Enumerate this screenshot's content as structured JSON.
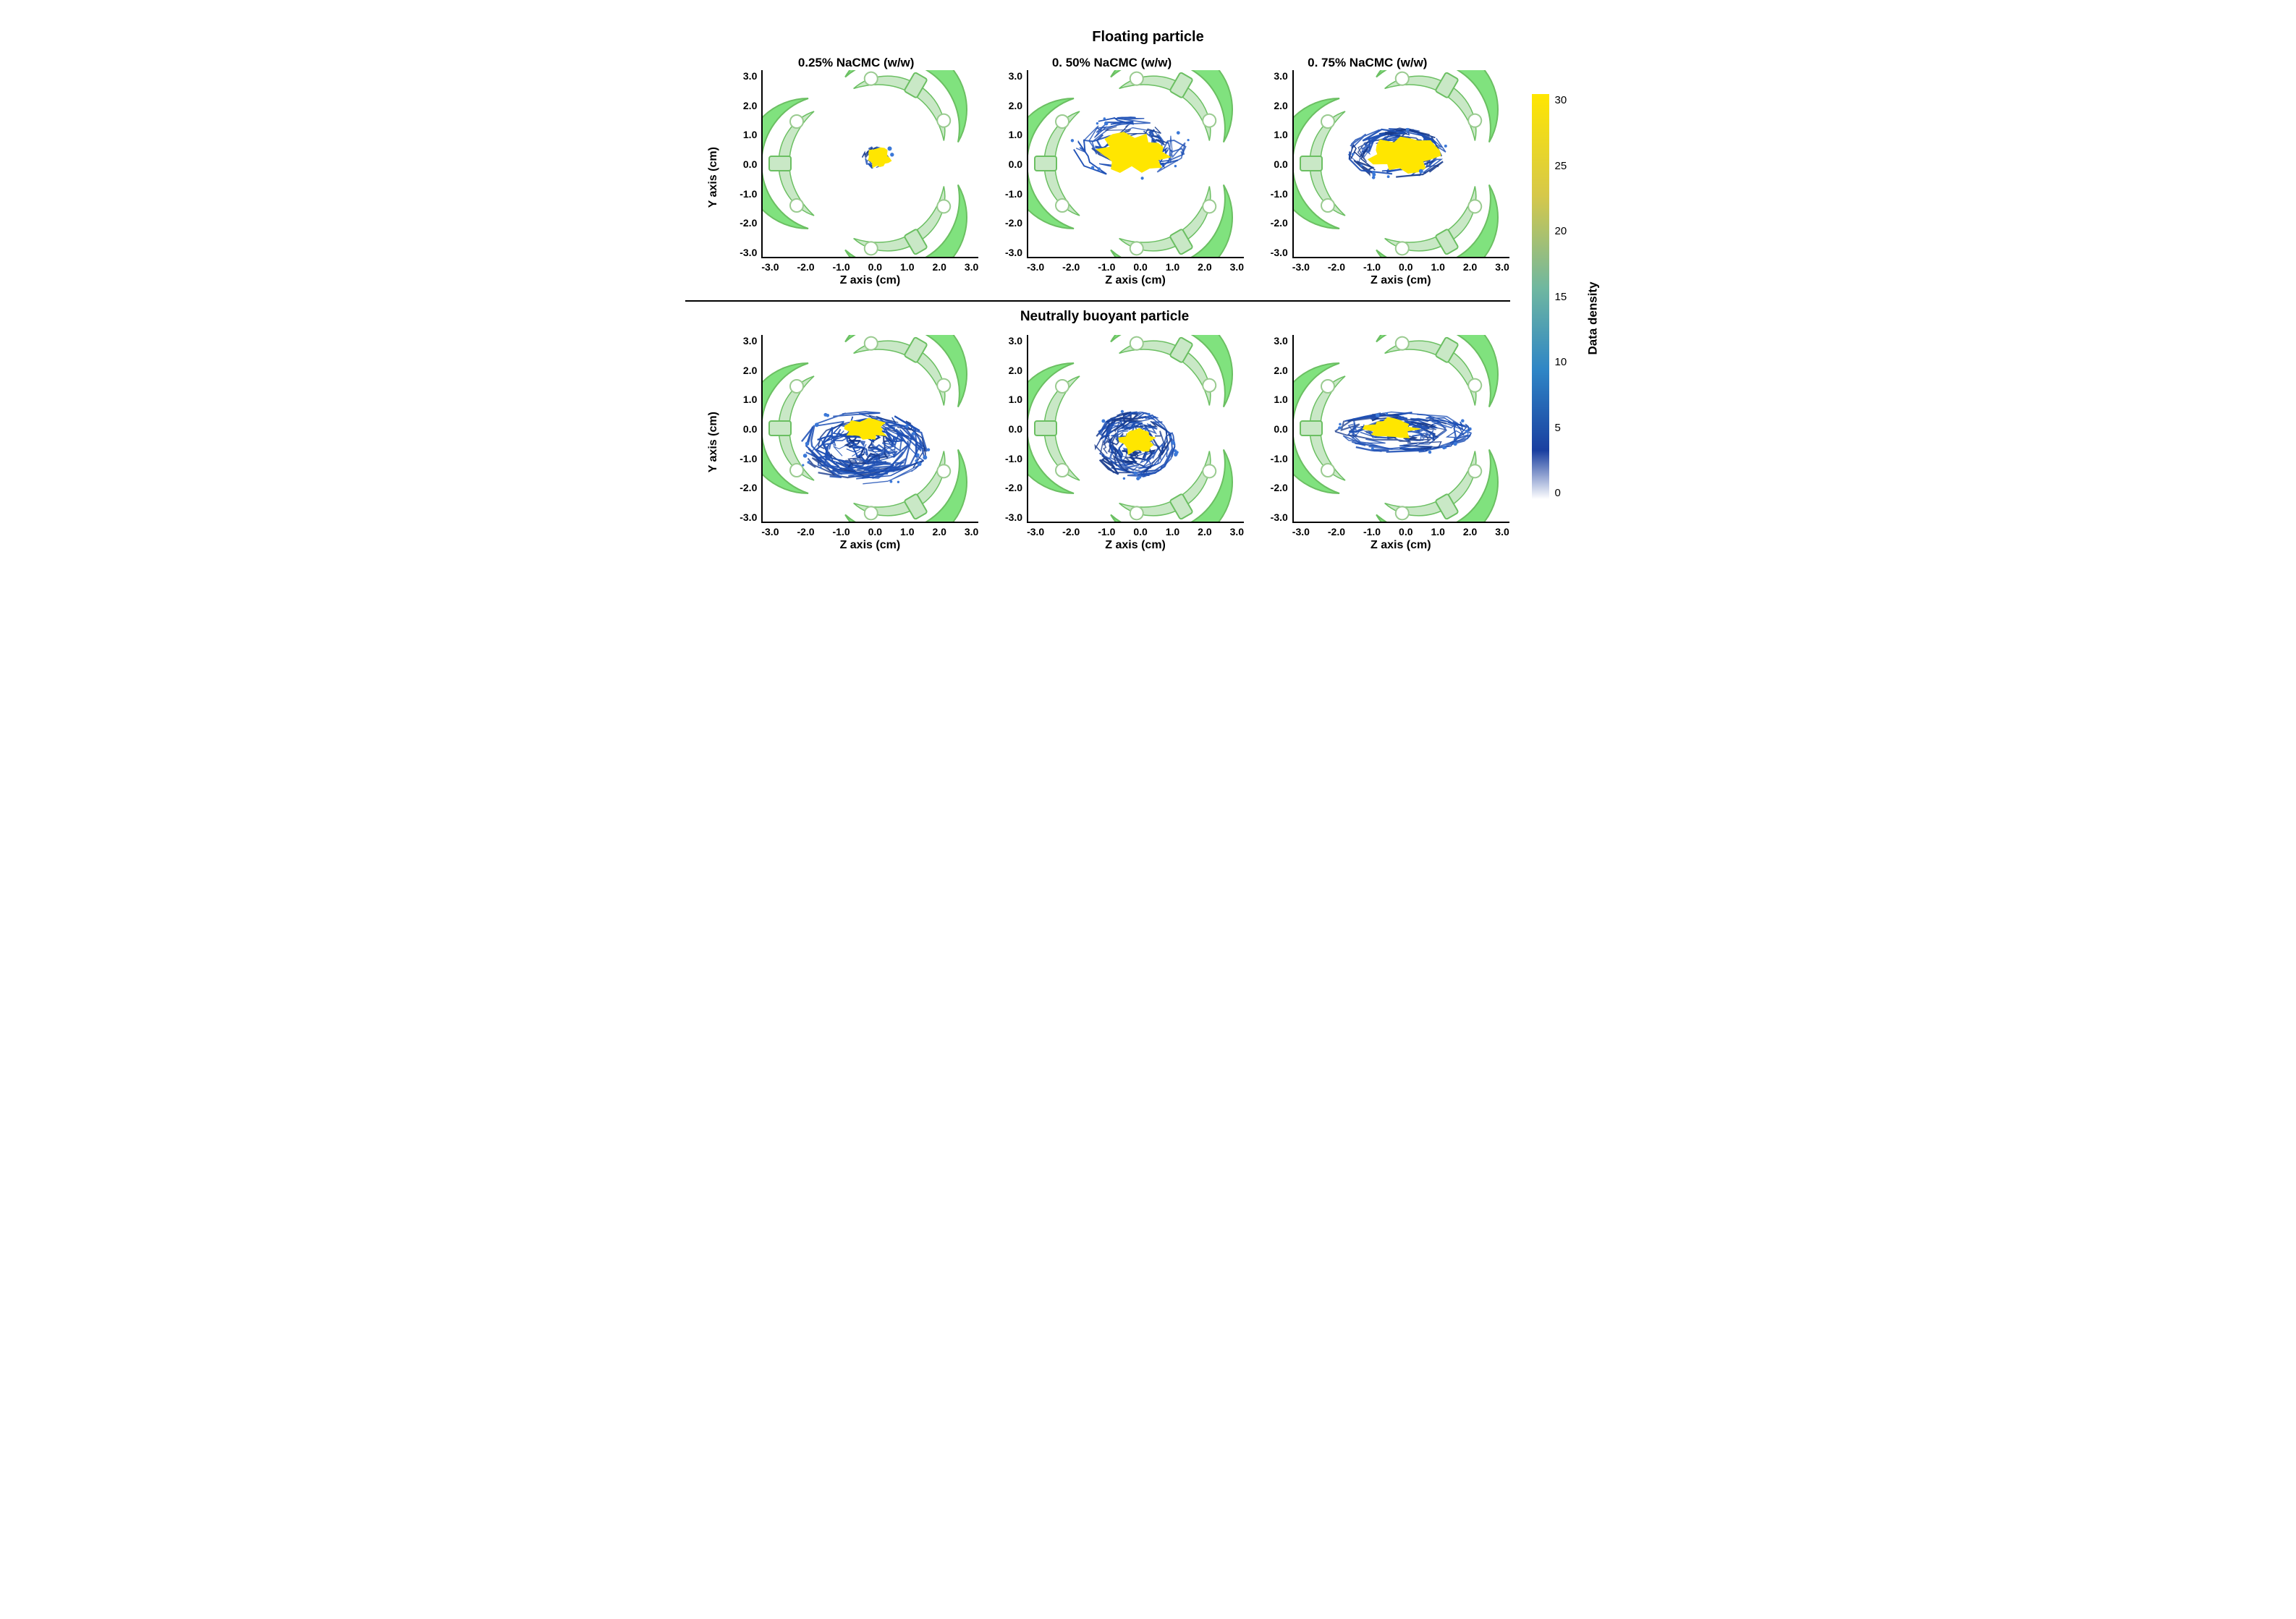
{
  "figure": {
    "type": "panel-grid-scatter-density",
    "background_color": "#ffffff",
    "title_top": "Floating particle",
    "title_bottom": "Neutrally buoyant particle",
    "title_fontsize": 20,
    "column_titles": [
      "0.25% NaCMC (w/w)",
      "0. 50% NaCMC (w/w)",
      "0. 75% NaCMC (w/w)"
    ],
    "column_title_fontsize": 17,
    "divider_color": "#000000",
    "axis": {
      "xlabel": "Z axis (cm)",
      "ylabel": "Y axis (cm)",
      "label_fontsize": 16,
      "tick_fontsize": 14,
      "xlim": [
        -3.0,
        3.0
      ],
      "ylim": [
        -3.0,
        3.0
      ],
      "xticks": [
        "-3.0",
        "-2.0",
        "-1.0",
        "0.0",
        "1.0",
        "2.0",
        "3.0"
      ],
      "yticks": [
        "3.0",
        "2.0",
        "1.0",
        "0.0",
        "-1.0",
        "-2.0",
        "-3.0"
      ],
      "axis_line_color": "#000000",
      "axis_line_width": 2
    },
    "vessel": {
      "fill_bright": "#80e27e",
      "fill_soft": "#c9e8c6",
      "stroke": "#6bbf62",
      "hole_fill": "#ffffff",
      "hole_stroke": "#9acb90",
      "outer_radius_cm": 3.2
    },
    "colorbar": {
      "label": "Data density",
      "label_fontsize": 17,
      "min": 0,
      "max": 30,
      "ticks": [
        "30",
        "25",
        "20",
        "15",
        "10",
        "5",
        "0"
      ],
      "tick_fontsize": 15,
      "gradient": {
        "top_color": "#ffe600",
        "upper_mid_color": "#d6c84a",
        "mid_color": "#6fb7a0",
        "lower_mid_color": "#2f86c6",
        "low_color": "#1a3fa0",
        "bottom_color": "#ffffff"
      }
    },
    "density_colors": {
      "high": "#ffe600",
      "mid": "#3b78d8",
      "low": "#173a8c",
      "line": "#1e50b5"
    },
    "panels": {
      "top": [
        {
          "id": "f-025",
          "core": {
            "cx_cm": 0.2,
            "cy_cm": 0.2,
            "rx_cm": 0.35,
            "ry_cm": 0.3,
            "rot_deg": 0
          },
          "spread": {
            "cx_cm": 0.2,
            "cy_cm": 0.2,
            "rx_cm": 0.45,
            "ry_cm": 0.38,
            "lines": 14
          }
        },
        {
          "id": "f-050",
          "core": {
            "cx_cm": -0.1,
            "cy_cm": 0.35,
            "rx_cm": 1.0,
            "ry_cm": 0.6,
            "rot_deg": -5
          },
          "spread": {
            "cx_cm": -0.25,
            "cy_cm": 0.55,
            "rx_cm": 1.6,
            "ry_cm": 0.95,
            "lines": 42
          }
        },
        {
          "id": "f-075",
          "core": {
            "cx_cm": 0.05,
            "cy_cm": 0.3,
            "rx_cm": 0.95,
            "ry_cm": 0.55,
            "rot_deg": 2
          },
          "spread": {
            "cx_cm": -0.15,
            "cy_cm": 0.35,
            "rx_cm": 1.35,
            "ry_cm": 0.8,
            "lines": 36
          }
        }
      ],
      "bottom": [
        {
          "id": "n-025",
          "core": {
            "cx_cm": -0.15,
            "cy_cm": 0.0,
            "rx_cm": 0.6,
            "ry_cm": 0.35,
            "rot_deg": 0
          },
          "spread": {
            "cx_cm": -0.2,
            "cy_cm": -0.6,
            "rx_cm": 1.75,
            "ry_cm": 1.15,
            "lines": 70
          }
        },
        {
          "id": "n-050",
          "core": {
            "cx_cm": 0.0,
            "cy_cm": -0.4,
            "rx_cm": 0.5,
            "ry_cm": 0.4,
            "rot_deg": 0
          },
          "spread": {
            "cx_cm": -0.05,
            "cy_cm": -0.5,
            "rx_cm": 1.1,
            "ry_cm": 1.05,
            "lines": 55
          }
        },
        {
          "id": "n-075",
          "core": {
            "cx_cm": -0.3,
            "cy_cm": 0.0,
            "rx_cm": 0.7,
            "ry_cm": 0.35,
            "rot_deg": 0
          },
          "spread": {
            "cx_cm": 0.0,
            "cy_cm": -0.1,
            "rx_cm": 1.9,
            "ry_cm": 0.65,
            "lines": 48
          }
        }
      ]
    }
  }
}
